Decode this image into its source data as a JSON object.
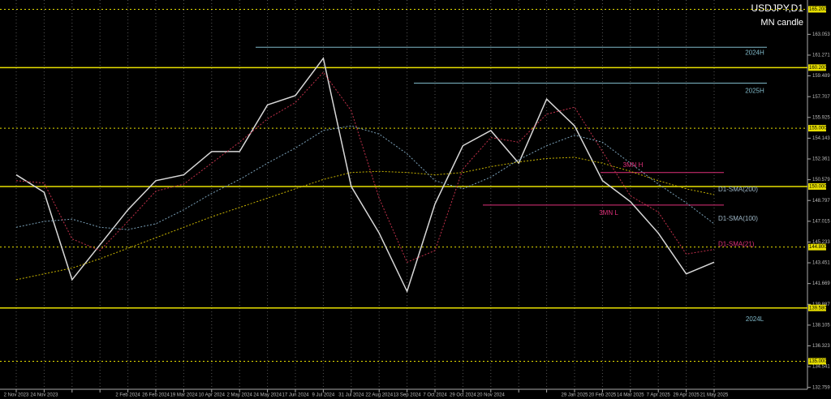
{
  "chart_data": {
    "type": "line",
    "title": "USDJPY,D1",
    "subtitle": "MN candle",
    "categories": [
      "2 Nov 2023",
      "24 Nov 2023",
      null,
      null,
      "2 Feb 2024",
      "26 Feb 2024",
      "19 Mar 2024",
      "10 Apr 2024",
      "2 May 2024",
      "24 May 2024",
      "17 Jun 2024",
      "9 Jul 2024",
      "31 Jul 2024",
      "22 Aug 2024",
      "13 Sep 2024",
      "7 Oct 2024",
      "29 Oct 2024",
      "20 Nov 2024",
      null,
      null,
      "29 Jan 2025",
      "20 Feb 2025",
      "14 Mar 2025",
      "7 Apr 2025",
      "29 Apr 2025",
      "21 May 2025"
    ],
    "series": [
      {
        "name": "USDJPY",
        "color": "#d8d8d8",
        "values": [
          151,
          149.5,
          142,
          145,
          148,
          150.5,
          151,
          153,
          153,
          157,
          157.8,
          161,
          150,
          146,
          141,
          148.5,
          153.5,
          154.8,
          152,
          157.5,
          155.2,
          150.5,
          148.7,
          146,
          142.5,
          143.5
        ]
      },
      {
        "name": "D1-SMA(200)",
        "color": "#c8b400",
        "values": [
          142,
          142.5,
          143,
          143.8,
          144.7,
          145.6,
          146.5,
          147.4,
          148.2,
          149,
          149.8,
          150.6,
          151.2,
          151.3,
          151.2,
          151,
          151.2,
          151.7,
          152.1,
          152.4,
          152.5,
          152,
          151.3,
          150.5,
          149.8,
          149.3
        ]
      },
      {
        "name": "D1-SMA(100)",
        "color": "#7aa0b8",
        "values": [
          146.5,
          147,
          147.2,
          146.5,
          146.3,
          146.8,
          148,
          149.4,
          150.6,
          152,
          153.3,
          154.8,
          155.2,
          154.5,
          152.8,
          150.5,
          149.8,
          150.8,
          152.3,
          153.5,
          154.4,
          153.8,
          152,
          150.2,
          148.6,
          146.8
        ]
      },
      {
        "name": "D1-SMA(21)",
        "color": "#c0304a",
        "values": [
          150.5,
          150.3,
          145.5,
          144.5,
          147,
          149.6,
          150.2,
          152,
          153.8,
          155.8,
          157.2,
          159.8,
          156.5,
          149,
          143.5,
          144.5,
          151.5,
          154.2,
          153.8,
          156.2,
          156.8,
          153,
          149.2,
          147.8,
          144.2,
          144.6
        ]
      }
    ],
    "levels": [
      {
        "value": 165.2,
        "label": "165.200",
        "style": "dotted"
      },
      {
        "value": 160.2,
        "label": "160.200",
        "style": "solid"
      },
      {
        "value": 155,
        "label": "155.000",
        "style": "dotted"
      },
      {
        "value": 150,
        "label": "150.000",
        "style": "solid"
      },
      {
        "value": 144.8,
        "label": "144.800",
        "style": "dotted"
      },
      {
        "value": 139.58,
        "label": "139.580",
        "style": "solid"
      },
      {
        "value": 135,
        "label": "135.000",
        "style": "dotted"
      }
    ],
    "level_color": "#e8e000",
    "annotations": [
      {
        "text": "2024H",
        "value": 161.95,
        "color": "#7fb8c8"
      },
      {
        "text": "2025H",
        "value": 158.87,
        "color": "#7fb8c8"
      },
      {
        "text": "2024L",
        "value": 139.58,
        "color": "#7fb8c8"
      },
      {
        "text": "3MN H",
        "value": 151.2,
        "color": "#e0307a"
      },
      {
        "text": "3MN L",
        "value": 148.4,
        "color": "#e0307a"
      }
    ],
    "ylim": [
      132.6,
      166
    ],
    "yticks": [
      163.053,
      161.271,
      159.489,
      157.707,
      155.925,
      154.143,
      152.361,
      150.579,
      148.797,
      147.015,
      145.233,
      143.451,
      141.669,
      139.887,
      138.105,
      136.323,
      134.541,
      132.759
    ],
    "grid": true
  }
}
